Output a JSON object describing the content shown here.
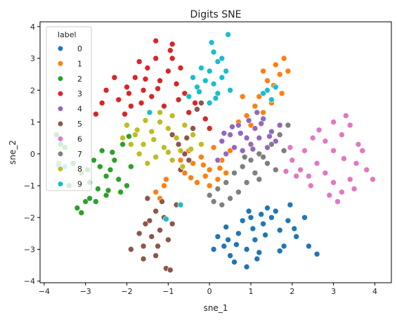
{
  "chart_data": {
    "type": "scatter",
    "title": "Digits SNE",
    "xlabel": "sne_1",
    "ylabel": "sne_2",
    "xlim": [
      -4.1,
      4.4
    ],
    "ylim": [
      -4.05,
      4.15
    ],
    "xticks": [
      -4,
      -3,
      -2,
      -1,
      0,
      1,
      2,
      3,
      4
    ],
    "yticks": [
      -4,
      -3,
      -2,
      -1,
      0,
      1,
      2,
      3,
      4
    ],
    "grid": false,
    "legend": {
      "title": "label",
      "placement": "top-left"
    },
    "series": [
      {
        "name": "0",
        "color": "#1f77b4",
        "points": [
          [
            0.2,
            -2.6
          ],
          [
            0.35,
            -2.9
          ],
          [
            0.5,
            -3.2
          ],
          [
            0.7,
            -2.5
          ],
          [
            0.9,
            -3.0
          ],
          [
            1.1,
            -2.7
          ],
          [
            1.3,
            -2.2
          ],
          [
            1.5,
            -2.0
          ],
          [
            1.7,
            -2.4
          ],
          [
            1.9,
            -2.1
          ],
          [
            2.1,
            -2.6
          ],
          [
            1.2,
            -3.1
          ],
          [
            0.8,
            -2.1
          ],
          [
            1.0,
            -2.0
          ],
          [
            1.4,
            -1.7
          ],
          [
            1.6,
            -1.8
          ],
          [
            1.8,
            -2.9
          ],
          [
            0.6,
            -3.4
          ],
          [
            0.9,
            -3.55
          ],
          [
            0.4,
            -2.3
          ],
          [
            1.15,
            -3.3
          ],
          [
            1.7,
            -3.05
          ],
          [
            2.3,
            -2.0
          ],
          [
            2.4,
            -2.9
          ],
          [
            2.6,
            -3.15
          ],
          [
            0.45,
            -2.7
          ],
          [
            1.05,
            -2.35
          ],
          [
            1.25,
            -1.9
          ],
          [
            1.95,
            -1.6
          ],
          [
            2.05,
            -2.35
          ],
          [
            0.65,
            -2.85
          ],
          [
            1.35,
            -2.55
          ],
          [
            0.95,
            -1.8
          ],
          [
            0.1,
            -3.0
          ]
        ]
      },
      {
        "name": "1",
        "color": "#ff7f0e",
        "points": [
          [
            -0.6,
            -0.6
          ],
          [
            -0.4,
            -0.3
          ],
          [
            -0.2,
            -0.1
          ],
          [
            0.0,
            -0.5
          ],
          [
            0.2,
            -0.8
          ],
          [
            -0.3,
            -0.9
          ],
          [
            0.3,
            -0.2
          ],
          [
            0.1,
            0.2
          ],
          [
            -0.5,
            0.1
          ],
          [
            -0.1,
            -0.7
          ],
          [
            0.4,
            -0.6
          ],
          [
            -0.7,
            -0.2
          ],
          [
            0.5,
            0.1
          ],
          [
            -0.2,
            0.3
          ],
          [
            0.0,
            -1.0
          ],
          [
            -0.45,
            -0.75
          ],
          [
            0.25,
            -0.45
          ],
          [
            -1.1,
            -1.0
          ],
          [
            -1.3,
            -1.2
          ],
          [
            -1.2,
            -1.4
          ],
          [
            -1.05,
            -0.8
          ],
          [
            0.7,
            1.0
          ],
          [
            0.9,
            1.2
          ],
          [
            1.1,
            1.5
          ],
          [
            1.3,
            1.3
          ],
          [
            1.5,
            1.6
          ],
          [
            1.4,
            2.3
          ],
          [
            1.6,
            2.8
          ],
          [
            1.7,
            2.5
          ],
          [
            1.8,
            3.0
          ],
          [
            1.9,
            2.6
          ],
          [
            1.75,
            1.9
          ],
          [
            1.55,
            2.15
          ],
          [
            1.3,
            2.6
          ],
          [
            1.2,
            1.8
          ],
          [
            0.8,
            1.8
          ],
          [
            1.0,
            0.9
          ],
          [
            -0.15,
            -0.35
          ]
        ]
      },
      {
        "name": "2",
        "color": "#2ca02c",
        "points": [
          [
            -3.5,
            0.2
          ],
          [
            -3.3,
            -0.3
          ],
          [
            -3.1,
            -0.6
          ],
          [
            -2.9,
            -0.9
          ],
          [
            -2.7,
            -1.1
          ],
          [
            -2.5,
            -1.3
          ],
          [
            -3.0,
            -1.5
          ],
          [
            -3.2,
            -1.7
          ],
          [
            -2.8,
            -0.2
          ],
          [
            -2.6,
            0.1
          ],
          [
            -2.4,
            -0.5
          ],
          [
            -2.2,
            -0.8
          ],
          [
            -2.0,
            -1.0
          ],
          [
            -2.3,
            -0.2
          ],
          [
            -2.1,
            0.3
          ],
          [
            -1.9,
            -0.4
          ],
          [
            -2.5,
            -0.7
          ],
          [
            -2.9,
            -1.4
          ],
          [
            -3.4,
            -1.0
          ],
          [
            -3.65,
            -0.3
          ],
          [
            -3.7,
            0.6
          ],
          [
            -3.6,
            0.3
          ],
          [
            -2.75,
            -1.5
          ],
          [
            -2.45,
            -1.15
          ],
          [
            -2.95,
            -0.5
          ],
          [
            -2.15,
            -1.2
          ],
          [
            -2.65,
            -0.4
          ],
          [
            -3.1,
            -1.85
          ],
          [
            -2.35,
            0.05
          ],
          [
            -1.95,
            0.55
          ]
        ]
      },
      {
        "name": "3",
        "color": "#d62728",
        "points": [
          [
            -2.5,
            2.0
          ],
          [
            -2.2,
            1.7
          ],
          [
            -2.0,
            2.1
          ],
          [
            -1.8,
            2.4
          ],
          [
            -1.6,
            2.0
          ],
          [
            -1.4,
            1.8
          ],
          [
            -1.2,
            2.3
          ],
          [
            -1.0,
            2.6
          ],
          [
            -0.8,
            2.2
          ],
          [
            -0.6,
            1.9
          ],
          [
            -1.5,
            2.7
          ],
          [
            -1.3,
            3.0
          ],
          [
            -0.9,
            3.0
          ],
          [
            -0.7,
            2.7
          ],
          [
            -2.3,
            2.4
          ],
          [
            -1.9,
            1.5
          ],
          [
            -1.1,
            1.5
          ],
          [
            -0.5,
            1.3
          ],
          [
            -2.6,
            1.6
          ],
          [
            -1.7,
            2.9
          ],
          [
            -0.95,
            3.25
          ],
          [
            -0.9,
            3.45
          ],
          [
            -1.3,
            3.55
          ],
          [
            -2.75,
            1.25
          ],
          [
            -0.35,
            1.6
          ],
          [
            -0.1,
            1.1
          ],
          [
            0.0,
            0.8
          ],
          [
            -2.05,
            1.25
          ],
          [
            -1.55,
            2.35
          ],
          [
            -1.25,
            2.05
          ],
          [
            -0.75,
            1.7
          ],
          [
            -1.95,
            1.9
          ],
          [
            -1.65,
            1.6
          ]
        ]
      },
      {
        "name": "4",
        "color": "#9467bd",
        "points": [
          [
            0.3,
            0.4
          ],
          [
            0.5,
            0.6
          ],
          [
            0.7,
            0.9
          ],
          [
            0.9,
            0.5
          ],
          [
            1.1,
            0.8
          ],
          [
            1.3,
            1.1
          ],
          [
            1.5,
            0.7
          ],
          [
            1.7,
            0.9
          ],
          [
            0.6,
            0.2
          ],
          [
            0.8,
            0.1
          ],
          [
            1.0,
            0.3
          ],
          [
            1.2,
            0.5
          ],
          [
            1.4,
            0.2
          ],
          [
            0.4,
            0.0
          ],
          [
            1.6,
            0.4
          ],
          [
            1.25,
            0.95
          ],
          [
            0.95,
            1.05
          ],
          [
            1.15,
            1.3
          ],
          [
            0.55,
            0.85
          ],
          [
            1.45,
            0.55
          ],
          [
            0.2,
            -0.2
          ],
          [
            1.05,
            0.15
          ],
          [
            0.75,
            0.65
          ],
          [
            0.35,
            0.65
          ]
        ]
      },
      {
        "name": "5",
        "color": "#8c564b",
        "points": [
          [
            -1.5,
            -1.4
          ],
          [
            -1.3,
            -1.8
          ],
          [
            -1.1,
            -2.0
          ],
          [
            -1.2,
            -2.4
          ],
          [
            -1.4,
            -2.6
          ],
          [
            -1.6,
            -2.9
          ],
          [
            -1.0,
            -2.7
          ],
          [
            -0.9,
            -2.2
          ],
          [
            -1.3,
            -3.2
          ],
          [
            -1.05,
            -3.6
          ],
          [
            -0.95,
            -3.65
          ],
          [
            -1.45,
            -2.1
          ],
          [
            -0.8,
            -1.6
          ],
          [
            -1.7,
            -2.5
          ],
          [
            -1.9,
            -3.0
          ],
          [
            -1.6,
            -3.3
          ],
          [
            -1.15,
            -1.5
          ],
          [
            -0.7,
            -0.5
          ],
          [
            -0.5,
            -0.2
          ],
          [
            -0.6,
            0.0
          ],
          [
            -0.75,
            0.3
          ],
          [
            -0.9,
            0.6
          ],
          [
            -0.55,
            0.5
          ],
          [
            -0.4,
            0.8
          ],
          [
            -0.3,
            1.4
          ],
          [
            -0.2,
            1.6
          ],
          [
            -1.25,
            -2.9
          ],
          [
            -1.55,
            -2.2
          ]
        ]
      },
      {
        "name": "6",
        "color": "#e377c2",
        "points": [
          [
            2.0,
            -0.2
          ],
          [
            2.2,
            -0.5
          ],
          [
            2.4,
            -0.7
          ],
          [
            2.6,
            -0.3
          ],
          [
            2.8,
            -0.6
          ],
          [
            3.0,
            -0.9
          ],
          [
            3.2,
            -1.2
          ],
          [
            3.4,
            -0.8
          ],
          [
            3.0,
            0.1
          ],
          [
            2.8,
            0.4
          ],
          [
            3.2,
            0.6
          ],
          [
            3.4,
            0.9
          ],
          [
            3.6,
            0.3
          ],
          [
            2.5,
            0.5
          ],
          [
            2.3,
            0.1
          ],
          [
            3.1,
            -1.5
          ],
          [
            3.5,
            -1.1
          ],
          [
            2.1,
            -0.7
          ],
          [
            3.8,
            -0.5
          ],
          [
            3.95,
            -0.8
          ],
          [
            3.3,
            1.2
          ],
          [
            3.0,
            1.0
          ],
          [
            3.55,
            -0.3
          ],
          [
            2.65,
            0.75
          ],
          [
            1.85,
            -0.55
          ],
          [
            1.95,
            0.2
          ],
          [
            3.25,
            -0.15
          ],
          [
            3.7,
            0.1
          ],
          [
            2.45,
            -1.0
          ],
          [
            2.9,
            -1.3
          ]
        ]
      },
      {
        "name": "7",
        "color": "#7f7f7f",
        "points": [
          [
            0.0,
            -1.3
          ],
          [
            0.2,
            -1.1
          ],
          [
            0.4,
            -0.9
          ],
          [
            0.6,
            -0.6
          ],
          [
            0.8,
            -0.4
          ],
          [
            1.0,
            -0.2
          ],
          [
            1.2,
            0.0
          ],
          [
            1.4,
            -0.3
          ],
          [
            0.9,
            -0.9
          ],
          [
            0.7,
            -1.2
          ],
          [
            1.1,
            -0.6
          ],
          [
            1.3,
            -0.1
          ],
          [
            1.5,
            0.3
          ],
          [
            1.7,
            0.6
          ],
          [
            1.9,
            0.9
          ],
          [
            0.5,
            -1.4
          ],
          [
            0.3,
            -1.6
          ],
          [
            0.1,
            -1.5
          ],
          [
            1.6,
            -0.5
          ],
          [
            1.8,
            0.1
          ],
          [
            1.2,
            -0.8
          ],
          [
            0.85,
            -0.1
          ]
        ]
      },
      {
        "name": "8",
        "color": "#bcbd22",
        "points": [
          [
            -2.0,
            0.9
          ],
          [
            -1.8,
            0.6
          ],
          [
            -1.6,
            0.3
          ],
          [
            -1.4,
            0.7
          ],
          [
            -1.2,
            1.0
          ],
          [
            -1.0,
            0.8
          ],
          [
            -0.8,
            0.5
          ],
          [
            -0.6,
            0.9
          ],
          [
            -0.4,
            0.6
          ],
          [
            -0.2,
            0.3
          ],
          [
            -1.7,
            0.0
          ],
          [
            -1.5,
            -0.3
          ],
          [
            -1.3,
            -0.1
          ],
          [
            -1.1,
            0.2
          ],
          [
            -0.9,
            -0.2
          ],
          [
            -0.7,
            0.1
          ],
          [
            -1.9,
            0.3
          ],
          [
            -2.1,
            0.5
          ],
          [
            -1.2,
            1.3
          ],
          [
            -0.9,
            1.2
          ],
          [
            -1.55,
            1.05
          ],
          [
            -0.65,
            -0.4
          ],
          [
            -1.35,
            0.45
          ],
          [
            -0.45,
            0.15
          ],
          [
            -1.75,
            0.75
          ],
          [
            -1.0,
            0.05
          ]
        ]
      },
      {
        "name": "9",
        "color": "#17becf",
        "points": [
          [
            0.0,
            2.6
          ],
          [
            0.2,
            2.9
          ],
          [
            0.1,
            3.2
          ],
          [
            -0.1,
            2.3
          ],
          [
            0.3,
            2.4
          ],
          [
            0.5,
            2.0
          ],
          [
            -0.3,
            2.1
          ],
          [
            -0.5,
            1.8
          ],
          [
            0.0,
            1.6
          ],
          [
            0.2,
            1.9
          ],
          [
            0.4,
            2.6
          ],
          [
            -0.2,
            2.7
          ],
          [
            0.05,
            3.5
          ],
          [
            0.45,
            3.75
          ],
          [
            0.3,
            3.0
          ],
          [
            -0.4,
            2.4
          ],
          [
            0.1,
            2.2
          ],
          [
            1.4,
            2.0
          ],
          [
            1.5,
            1.7
          ],
          [
            1.6,
            2.1
          ],
          [
            1.3,
            1.9
          ],
          [
            -3.65,
            -0.35
          ],
          [
            -3.5,
            -0.4
          ],
          [
            -1.45,
            1.3
          ],
          [
            -1.05,
            -2.05
          ],
          [
            -0.7,
            -1.6
          ],
          [
            -0.25,
            1.95
          ],
          [
            0.15,
            1.75
          ]
        ]
      }
    ]
  }
}
